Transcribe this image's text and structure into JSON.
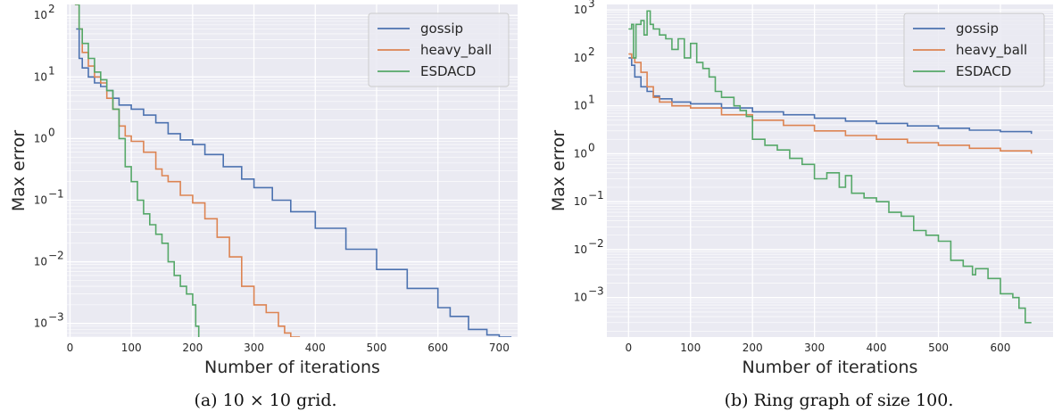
{
  "chart_data": [
    {
      "type": "line",
      "caption": "(a) 10 × 10 grid.",
      "xlabel": "Number of iterations",
      "ylabel": "Max error",
      "xlim": [
        -5,
        730
      ],
      "ylim": [
        0.0006,
        150
      ],
      "yscale": "log",
      "xticks": [
        0,
        100,
        200,
        300,
        400,
        500,
        600,
        700
      ],
      "yticks": [
        {
          "value": 0.001,
          "base": "10",
          "exp": "−3"
        },
        {
          "value": 0.01,
          "base": "10",
          "exp": "−2"
        },
        {
          "value": 0.1,
          "base": "10",
          "exp": "−1"
        },
        {
          "value": 1,
          "base": "10",
          "exp": "0"
        },
        {
          "value": 10,
          "base": "10",
          "exp": "1"
        },
        {
          "value": 100,
          "base": "10",
          "exp": "2"
        }
      ],
      "grid": true,
      "legend_position": "top-right",
      "series": [
        {
          "name": "gossip",
          "color": "#4c72b0",
          "x": [
            10,
            15,
            20,
            30,
            40,
            50,
            60,
            70,
            80,
            100,
            120,
            140,
            160,
            180,
            200,
            220,
            250,
            280,
            300,
            330,
            360,
            400,
            450,
            500,
            550,
            600,
            620,
            650,
            680,
            700,
            720
          ],
          "y": [
            60,
            20,
            14,
            10,
            8,
            7,
            6,
            4.5,
            3.5,
            3,
            2.4,
            1.8,
            1.2,
            0.95,
            0.8,
            0.55,
            0.35,
            0.22,
            0.16,
            0.1,
            0.065,
            0.035,
            0.016,
            0.0075,
            0.0037,
            0.0018,
            0.0013,
            0.0008,
            0.00065,
            0.0006,
            0.0006
          ]
        },
        {
          "name": "heavy_ball",
          "color": "#dd8452",
          "x": [
            8,
            15,
            20,
            30,
            40,
            50,
            60,
            70,
            80,
            90,
            100,
            120,
            140,
            150,
            160,
            180,
            200,
            220,
            240,
            260,
            280,
            300,
            320,
            340,
            350,
            360,
            375
          ],
          "y": [
            150,
            60,
            25,
            15,
            10,
            8,
            4.5,
            3,
            1.6,
            1.1,
            0.9,
            0.6,
            0.32,
            0.25,
            0.2,
            0.12,
            0.09,
            0.05,
            0.025,
            0.012,
            0.004,
            0.002,
            0.0015,
            0.0009,
            0.0007,
            0.0006,
            0.0006
          ]
        },
        {
          "name": "ESDACD",
          "color": "#55a868",
          "x": [
            8,
            15,
            20,
            30,
            40,
            50,
            60,
            70,
            80,
            90,
            100,
            110,
            120,
            130,
            140,
            150,
            160,
            170,
            180,
            190,
            200,
            205,
            210
          ],
          "y": [
            150,
            60,
            35,
            20,
            12,
            9,
            6,
            3,
            1,
            0.35,
            0.2,
            0.1,
            0.06,
            0.04,
            0.028,
            0.02,
            0.01,
            0.006,
            0.004,
            0.003,
            0.002,
            0.0009,
            0.0006
          ]
        }
      ]
    },
    {
      "type": "line",
      "caption": "(b) Ring graph of size 100.",
      "xlabel": "Number of iterations",
      "ylabel": "Max error",
      "xlim": [
        -35,
        685
      ],
      "ylim": [
        0.00015,
        1300
      ],
      "yscale": "log",
      "xticks": [
        0,
        100,
        200,
        300,
        400,
        500,
        600
      ],
      "yticks": [
        {
          "value": 0.001,
          "base": "10",
          "exp": "−3"
        },
        {
          "value": 0.01,
          "base": "10",
          "exp": "−2"
        },
        {
          "value": 0.1,
          "base": "10",
          "exp": "−1"
        },
        {
          "value": 1,
          "base": "10",
          "exp": "0"
        },
        {
          "value": 10,
          "base": "10",
          "exp": "1"
        },
        {
          "value": 100,
          "base": "10",
          "exp": "2"
        },
        {
          "value": 1000,
          "base": "10",
          "exp": "3"
        }
      ],
      "grid": true,
      "legend_position": "top-right",
      "series": [
        {
          "name": "gossip",
          "color": "#4c72b0",
          "x": [
            0,
            5,
            10,
            20,
            30,
            40,
            50,
            70,
            100,
            150,
            200,
            250,
            300,
            350,
            400,
            450,
            500,
            550,
            600,
            650
          ],
          "y": [
            100,
            70,
            40,
            25,
            20,
            16,
            14,
            12,
            11,
            9,
            7.5,
            6.5,
            5.5,
            4.8,
            4.3,
            3.8,
            3.4,
            3.1,
            2.9,
            2.6
          ]
        },
        {
          "name": "heavy_ball",
          "color": "#dd8452",
          "x": [
            0,
            5,
            10,
            20,
            30,
            40,
            50,
            70,
            100,
            150,
            200,
            250,
            300,
            350,
            400,
            450,
            500,
            550,
            600,
            650
          ],
          "y": [
            120,
            100,
            80,
            50,
            25,
            15,
            12,
            10,
            9,
            6.5,
            5,
            3.9,
            3,
            2.4,
            2,
            1.7,
            1.5,
            1.3,
            1.15,
            1
          ]
        },
        {
          "name": "ESDACD",
          "color": "#55a868",
          "x": [
            0,
            5,
            8,
            12,
            20,
            25,
            30,
            35,
            40,
            50,
            60,
            70,
            80,
            90,
            100,
            110,
            120,
            130,
            140,
            150,
            160,
            170,
            180,
            190,
            200,
            220,
            240,
            260,
            280,
            300,
            320,
            340,
            350,
            360,
            380,
            400,
            420,
            440,
            460,
            480,
            500,
            520,
            540,
            555,
            560,
            580,
            600,
            620,
            630,
            640,
            650
          ],
          "y": [
            400,
            500,
            100,
            500,
            600,
            300,
            950,
            500,
            400,
            300,
            250,
            150,
            250,
            100,
            200,
            80,
            60,
            40,
            20,
            15,
            15,
            10,
            8,
            6,
            2,
            1.5,
            1.2,
            0.8,
            0.6,
            0.3,
            0.4,
            0.2,
            0.35,
            0.15,
            0.12,
            0.1,
            0.06,
            0.05,
            0.025,
            0.02,
            0.015,
            0.006,
            0.0045,
            0.003,
            0.004,
            0.0025,
            0.0012,
            0.001,
            0.0006,
            0.0003,
            0.0003
          ]
        }
      ]
    }
  ]
}
